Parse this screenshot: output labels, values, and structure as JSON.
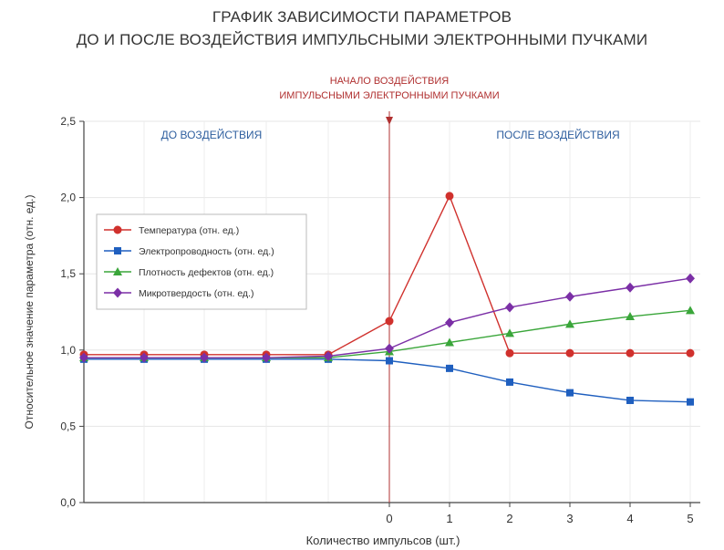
{
  "chart_data": {
    "type": "line",
    "title": [
      "ГРАФИК ЗАВИСИМОСТИ ПАРАМЕТРОВ",
      "ДО И ПОСЛЕ ВОЗДЕЙСТВИЯ ИМПУЛЬСНЫМИ ЭЛЕКТРОННЫМИ ПУЧКАМИ"
    ],
    "xlabel": "Количество импульсов (шт.)",
    "ylabel": "Относительное значение параметра (отн. ед.)",
    "ylim": [
      0,
      2.5
    ],
    "yticks": [
      "0,0",
      "0,5",
      "1,0",
      "1,5",
      "2,0",
      "2,5"
    ],
    "xtick_labels": [
      "0",
      "1",
      "2",
      "3",
      "4",
      "5"
    ],
    "grid": true,
    "legend_position": "upper-left",
    "annotations": {
      "marker_line": [
        "НАЧАЛО ВОЗДЕЙСТВИЯ",
        "ИМПУЛЬСНЫМИ ЭЛЕКТРОННЫМИ ПУЧКАМИ"
      ],
      "before": "ДО ВОЗДЕЙСТВИЯ",
      "after": "ПОСЛЕ ВОЗДЕЙСТВИЯ"
    },
    "x_before": [
      -5,
      -4,
      -3,
      -2,
      -1
    ],
    "x_after": [
      0,
      1,
      2,
      3,
      4,
      5
    ],
    "series": [
      {
        "name": "Температура (отн. ед.)",
        "color": "#d0312d",
        "marker": "circle",
        "before": [
          0.97,
          0.97,
          0.97,
          0.97,
          0.97
        ],
        "after": [
          1.19,
          2.01,
          0.98,
          0.98,
          0.98,
          0.98
        ]
      },
      {
        "name": "Электропроводность (отн. ед.)",
        "color": "#1f5fbf",
        "marker": "square",
        "before": [
          0.94,
          0.94,
          0.94,
          0.94,
          0.94
        ],
        "after": [
          0.93,
          0.88,
          0.79,
          0.72,
          0.67,
          0.66
        ]
      },
      {
        "name": "Плотность дефектов (отн. ед.)",
        "color": "#3aa63a",
        "marker": "triangle",
        "before": [
          0.95,
          0.95,
          0.95,
          0.95,
          0.95
        ],
        "after": [
          0.99,
          1.05,
          1.11,
          1.17,
          1.22,
          1.26
        ]
      },
      {
        "name": "Микротвердость (отн. ед.)",
        "color": "#7b2fa6",
        "marker": "diamond",
        "before": [
          0.95,
          0.95,
          0.95,
          0.95,
          0.96
        ],
        "after": [
          1.01,
          1.18,
          1.28,
          1.35,
          1.41,
          1.47
        ]
      }
    ]
  }
}
